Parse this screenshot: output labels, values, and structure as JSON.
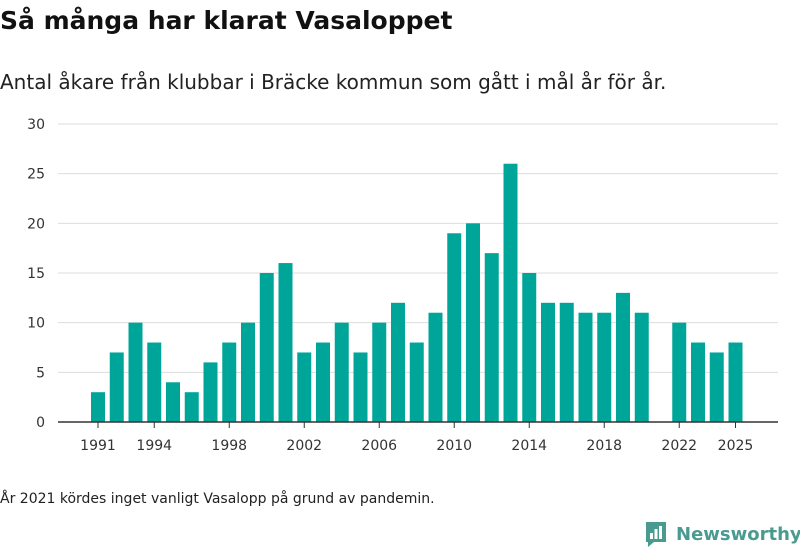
{
  "title": "Så många har klarat Vasaloppet",
  "subtitle": "Antal åkare från klubbar i Bräcke kommun som gått i mål år för år.",
  "footnote": "År 2021 kördes inget vanligt Vasalopp på grund av pandemin.",
  "brand": {
    "name": "Newsworthy",
    "color": "#4a9b8f"
  },
  "colors": {
    "bar": "#00a59a",
    "grid": "#dddddd",
    "axis": "#333333"
  },
  "chart_data": {
    "type": "bar",
    "title": "Så många har klarat Vasaloppet",
    "subtitle": "Antal åkare från klubbar i Bräcke kommun som gått i mål år för år.",
    "xlabel": "",
    "ylabel": "",
    "ylim": [
      0,
      30
    ],
    "yticks": [
      0,
      5,
      10,
      15,
      20,
      25,
      30
    ],
    "xticks": [
      "1991",
      "1994",
      "1998",
      "2002",
      "2006",
      "2010",
      "2014",
      "2018",
      "2022",
      "2025"
    ],
    "grid": true,
    "legend": "none",
    "categories": [
      1991,
      1992,
      1993,
      1994,
      1995,
      1996,
      1997,
      1998,
      1999,
      2000,
      2001,
      2002,
      2003,
      2004,
      2005,
      2006,
      2007,
      2008,
      2009,
      2010,
      2011,
      2012,
      2013,
      2014,
      2015,
      2016,
      2017,
      2018,
      2019,
      2020,
      2021,
      2022,
      2023,
      2024,
      2025
    ],
    "values": [
      3,
      7,
      10,
      8,
      4,
      3,
      6,
      8,
      10,
      15,
      16,
      7,
      8,
      10,
      7,
      10,
      12,
      8,
      11,
      19,
      20,
      17,
      26,
      15,
      12,
      12,
      11,
      11,
      13,
      11,
      null,
      10,
      8,
      7,
      8
    ]
  }
}
